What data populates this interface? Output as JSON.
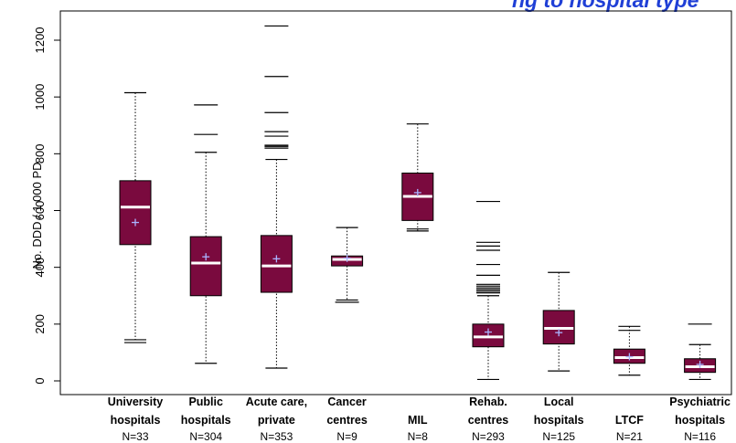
{
  "chart_data": {
    "type": "boxplot",
    "title": "ng to hospital type",
    "ylabel": "No. DDD / 1 000 PD",
    "xlabel": "",
    "ylim": [
      -40,
      1290
    ],
    "yticks": [
      0,
      200,
      400,
      600,
      800,
      1000,
      1200
    ],
    "colors": {
      "box_fill": "#7a0a3e",
      "median": "#ffffff",
      "mean_marker": "#aab4ff",
      "title": "#1f3fd6"
    },
    "groups": [
      {
        "label_lines": [
          "University",
          "hospitals"
        ],
        "n_label": "N=33",
        "whisker_low": 135,
        "q1": 480,
        "median": 612,
        "q3": 705,
        "whisker_high": 1015,
        "mean": 558,
        "cap_low_extra": 145,
        "outliers": []
      },
      {
        "label_lines": [
          "Public",
          "hospitals"
        ],
        "n_label": "N=304",
        "whisker_low": 62,
        "q1": 300,
        "median": 415,
        "q3": 508,
        "whisker_high": 805,
        "mean": 437,
        "outliers": [
          868,
          972
        ]
      },
      {
        "label_lines": [
          "Acute care,",
          "private"
        ],
        "n_label": "N=353",
        "whisker_low": 45,
        "q1": 312,
        "median": 405,
        "q3": 512,
        "whisker_high": 780,
        "mean": 430,
        "outliers": [
          820,
          826,
          830,
          862,
          878,
          945,
          1072,
          1250
        ]
      },
      {
        "label_lines": [
          "Cancer",
          "centres"
        ],
        "n_label": "N=9",
        "whisker_low": 285,
        "q1": 405,
        "median": 428,
        "q3": 440,
        "whisker_high": 540,
        "mean": 432,
        "outliers": [
          277
        ]
      },
      {
        "label_lines": [
          "",
          "MIL"
        ],
        "n_label": "N=8",
        "whisker_low": 528,
        "q1": 565,
        "median": 650,
        "q3": 732,
        "whisker_high": 905,
        "mean": 663,
        "cap_low_extra": 535,
        "outliers": []
      },
      {
        "label_lines": [
          "Rehab.",
          "centres"
        ],
        "n_label": "N=293",
        "whisker_low": 5,
        "q1": 120,
        "median": 155,
        "q3": 200,
        "whisker_high": 300,
        "mean": 172,
        "outliers": [
          310,
          316,
          322,
          328,
          334,
          340,
          372,
          410,
          460,
          475,
          488,
          632
        ]
      },
      {
        "label_lines": [
          "Local",
          "hospitals"
        ],
        "n_label": "N=125",
        "whisker_low": 35,
        "q1": 130,
        "median": 185,
        "q3": 248,
        "whisker_high": 382,
        "mean": 170,
        "outliers": []
      },
      {
        "label_lines": [
          "",
          "LTCF"
        ],
        "n_label": "N=21",
        "whisker_low": 20,
        "q1": 62,
        "median": 82,
        "q3": 112,
        "whisker_high": 192,
        "mean": 85,
        "cap_high_extra": 178,
        "outliers": []
      },
      {
        "label_lines": [
          "Psychiatric",
          "hospitals"
        ],
        "n_label": "N=116",
        "whisker_low": 5,
        "q1": 30,
        "median": 50,
        "q3": 78,
        "whisker_high": 128,
        "mean": 58,
        "outliers": [
          200
        ]
      }
    ]
  }
}
